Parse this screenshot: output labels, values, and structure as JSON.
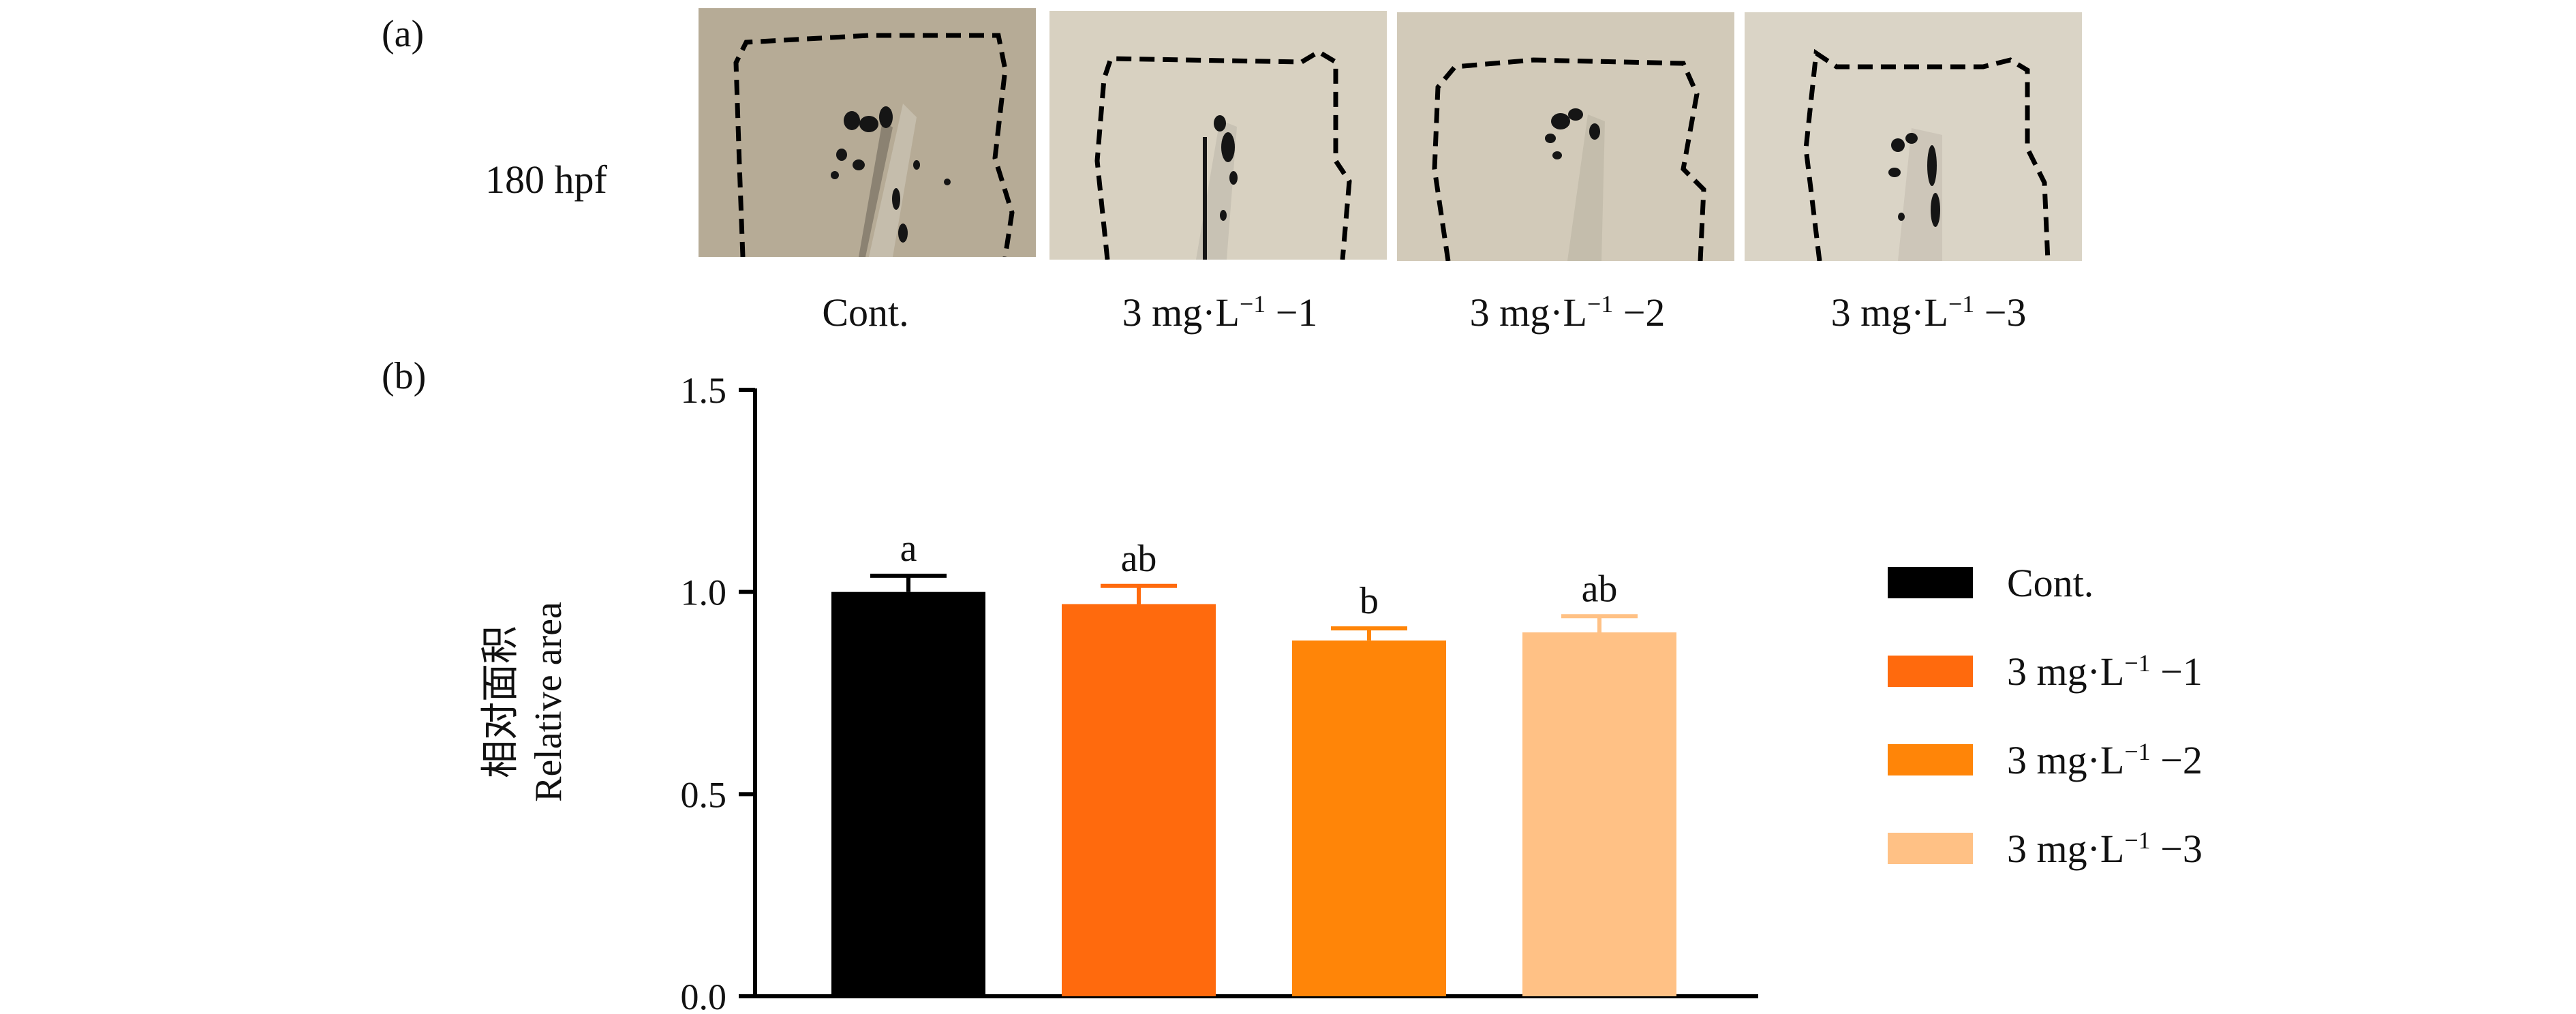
{
  "panel_a": {
    "label": "(a)",
    "row_label": "180 hpf",
    "images": [
      {
        "caption": "Cont.",
        "bg": "#b6ab96"
      },
      {
        "caption_main": "3 mg·L",
        "caption_sup": "−1",
        "caption_suffix": " −1",
        "bg": "#d8d1c1"
      },
      {
        "caption_main": "3 mg·L",
        "caption_sup": "−1",
        "caption_suffix": " −2",
        "bg": "#d2cab9"
      },
      {
        "caption_main": "3 mg·L",
        "caption_sup": "−1",
        "caption_suffix": " −3",
        "bg": "#dad4c6"
      }
    ]
  },
  "panel_b": {
    "label": "(b)",
    "ylabel_zh": "相对面积",
    "ylabel_en": "Relative area"
  },
  "legend": [
    {
      "main": "Cont.",
      "sup": "",
      "suffix": ""
    },
    {
      "main": "3 mg·L",
      "sup": "−1",
      "suffix": " −1"
    },
    {
      "main": "3 mg·L",
      "sup": "−1",
      "suffix": " −2"
    },
    {
      "main": "3 mg·L",
      "sup": "−1",
      "suffix": " −3"
    }
  ],
  "chart_data": {
    "type": "bar",
    "categories": [
      "Cont.",
      "3 mg·L−1 −1",
      "3 mg·L−1 −2",
      "3 mg·L−1 −3"
    ],
    "values": [
      1.0,
      0.97,
      0.88,
      0.9
    ],
    "errors": [
      0.04,
      0.045,
      0.03,
      0.04
    ],
    "significance": [
      "a",
      "ab",
      "b",
      "ab"
    ],
    "colors": [
      "#000000",
      "#ff6a0d",
      "#ff8508",
      "#ffc185"
    ],
    "ylim": [
      0,
      1.5
    ],
    "yticks": [
      "0.0",
      "0.5",
      "1.0",
      "1.5"
    ],
    "ytick_values": [
      0,
      0.5,
      1.0,
      1.5
    ],
    "grid": false,
    "legend_position": "right"
  }
}
